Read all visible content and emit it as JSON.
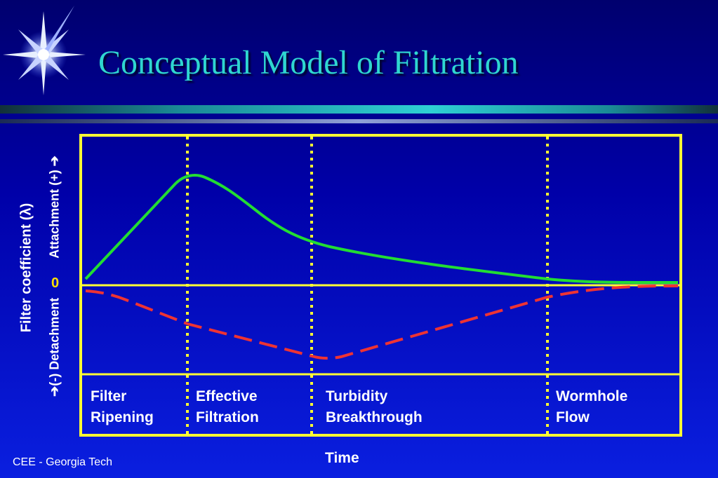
{
  "title": "Conceptual Model of Filtration",
  "footer": "CEE - Georgia Tech",
  "y_axis": {
    "label": "Filter coefficient (λ)",
    "upper": "Attachment (+) ➔",
    "lower": "➔(-) Detachment",
    "zero_label": "0"
  },
  "x_axis": {
    "label": "Time"
  },
  "phases": [
    {
      "line1": "Filter",
      "line2": "Ripening"
    },
    {
      "line1": "Effective",
      "line2": "Filtration"
    },
    {
      "line1": "Turbidity",
      "line2": "Breakthrough"
    },
    {
      "line1": "Wormhole",
      "line2": "Flow"
    }
  ],
  "colors": {
    "frame": "#ffff33",
    "attachment_curve": "#22dd33",
    "detachment_curve": "#ee3333",
    "title": "#2fd6d0",
    "zero": "#ffe000"
  },
  "icons": [
    "star-burst-icon"
  ]
}
